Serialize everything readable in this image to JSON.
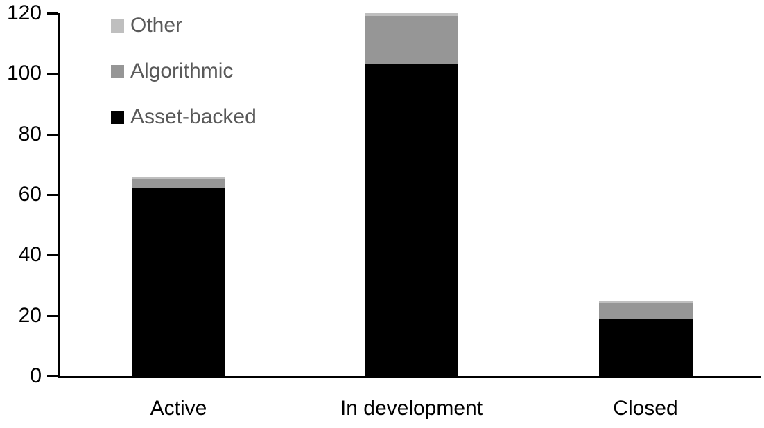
{
  "chart_data": {
    "type": "bar",
    "stacked": true,
    "title": "",
    "xlabel": "",
    "ylabel": "",
    "categories": [
      "Active",
      "In development",
      "Closed"
    ],
    "series": [
      {
        "name": "Asset-backed",
        "color": "#000000",
        "values": [
          62,
          103,
          19
        ]
      },
      {
        "name": "Algorithmic",
        "color": "#969696",
        "values": [
          3,
          16,
          5
        ]
      },
      {
        "name": "Other",
        "color": "#bfbfbf",
        "values": [
          1,
          1,
          1
        ]
      }
    ],
    "totals": [
      66,
      120,
      25
    ],
    "ylim": [
      0,
      120
    ],
    "yticks": [
      0,
      20,
      40,
      60,
      80,
      100,
      120
    ],
    "grid": false,
    "axis_color": "#000000",
    "legend": {
      "position": "top-left",
      "order_top_to_bottom": [
        "Other",
        "Algorithmic",
        "Asset-backed"
      ],
      "text_color": "#595959"
    }
  }
}
